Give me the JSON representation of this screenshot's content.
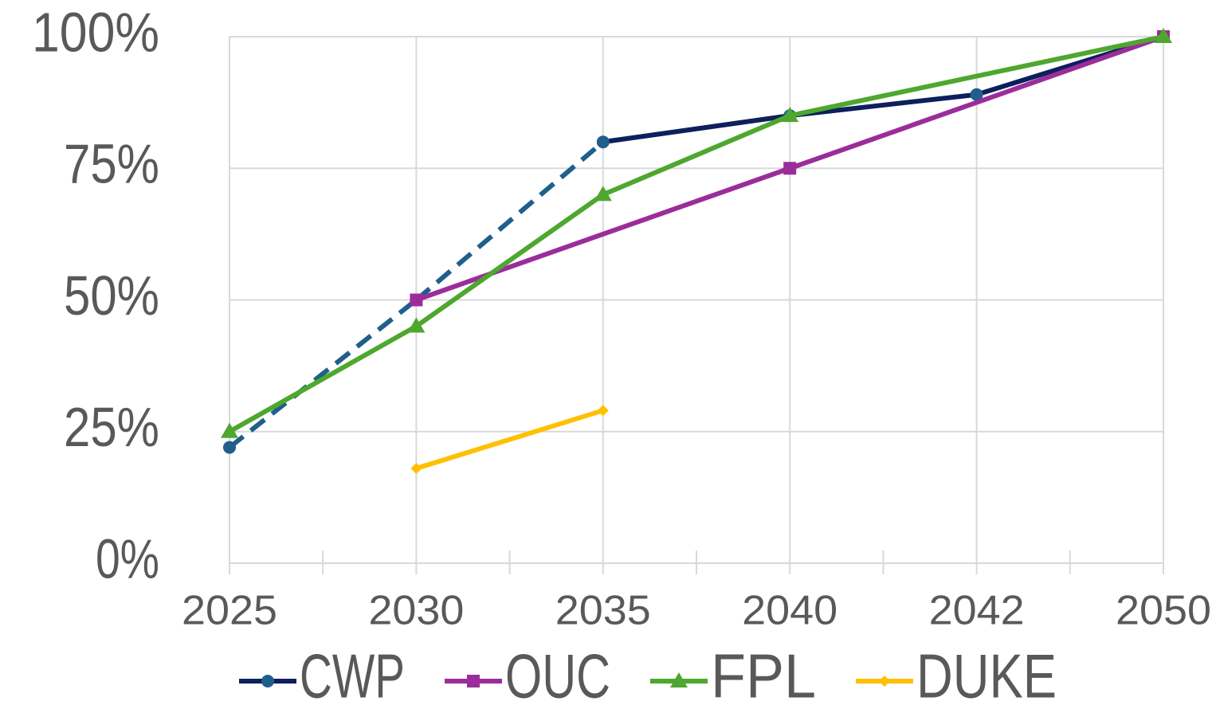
{
  "chart_data": {
    "type": "line",
    "categories": [
      "2025",
      "2030",
      "2035",
      "2040",
      "2042",
      "2050"
    ],
    "series": [
      {
        "name": "CWP",
        "color": "#0d1f5c",
        "marker": "circle",
        "marker_color": "#1f5f8b",
        "dashed_color": "#1f5f8b",
        "dashed_until": 2,
        "values": [
          22,
          50,
          80,
          85,
          89,
          100
        ]
      },
      {
        "name": "OUC",
        "color": "#9b2d9b",
        "marker": "square",
        "values": [
          null,
          50,
          null,
          75,
          null,
          100
        ]
      },
      {
        "name": "FPL",
        "color": "#4ea72e",
        "marker": "triangle",
        "values": [
          25,
          45,
          70,
          85,
          null,
          100
        ]
      },
      {
        "name": "DUKE",
        "color": "#ffc000",
        "marker": "diamond",
        "values": [
          null,
          18,
          29,
          null,
          null,
          null
        ]
      }
    ],
    "span_gaps": true,
    "ylim": [
      0,
      100
    ],
    "yticks": [
      {
        "value": 0,
        "label": "0%"
      },
      {
        "value": 25,
        "label": "25%"
      },
      {
        "value": 50,
        "label": "50%"
      },
      {
        "value": 75,
        "label": "75%"
      },
      {
        "value": 100,
        "label": "100%"
      }
    ],
    "grid": true,
    "legend": "bottom"
  }
}
